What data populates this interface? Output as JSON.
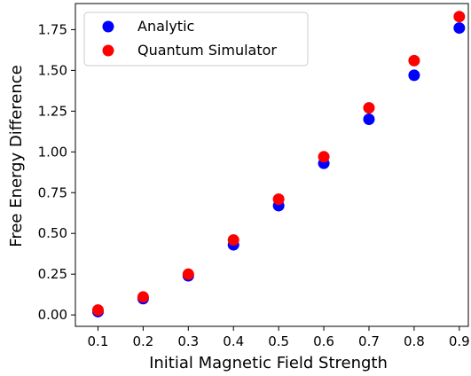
{
  "chart_data": {
    "type": "scatter",
    "title": "",
    "xlabel": "Initial Magnetic Field Strength",
    "ylabel": "Free Energy Difference",
    "xlim": [
      0.05,
      0.92
    ],
    "ylim": [
      -0.07,
      1.91
    ],
    "x_ticks": [
      "0.1",
      "0.2",
      "0.3",
      "0.4",
      "0.5",
      "0.6",
      "0.7",
      "0.8",
      "0.9"
    ],
    "y_ticks": [
      "0.00",
      "0.25",
      "0.50",
      "0.75",
      "1.00",
      "1.25",
      "1.50",
      "1.75"
    ],
    "grid": false,
    "legend_position": "top-left",
    "series": [
      {
        "name": "Analytic",
        "color": "#0000ff",
        "x": [
          0.1,
          0.2,
          0.3,
          0.4,
          0.5,
          0.6,
          0.7,
          0.8,
          0.9
        ],
        "y": [
          0.02,
          0.1,
          0.24,
          0.43,
          0.67,
          0.93,
          1.2,
          1.47,
          1.76
        ]
      },
      {
        "name": "Quantum Simulator",
        "color": "#ff0000",
        "x": [
          0.1,
          0.2,
          0.3,
          0.4,
          0.5,
          0.6,
          0.7,
          0.8,
          0.9
        ],
        "y": [
          0.03,
          0.11,
          0.25,
          0.46,
          0.71,
          0.97,
          1.27,
          1.56,
          1.83
        ]
      }
    ]
  }
}
